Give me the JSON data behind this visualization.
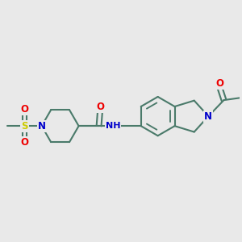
{
  "bg_color": "#e9e9e9",
  "bond_color": "#4a7a6a",
  "bond_width": 1.5,
  "atom_colors": {
    "N": "#0000cc",
    "O": "#ee0000",
    "S": "#cccc00",
    "C": "#4a7a6a"
  },
  "font_size": 7.5
}
